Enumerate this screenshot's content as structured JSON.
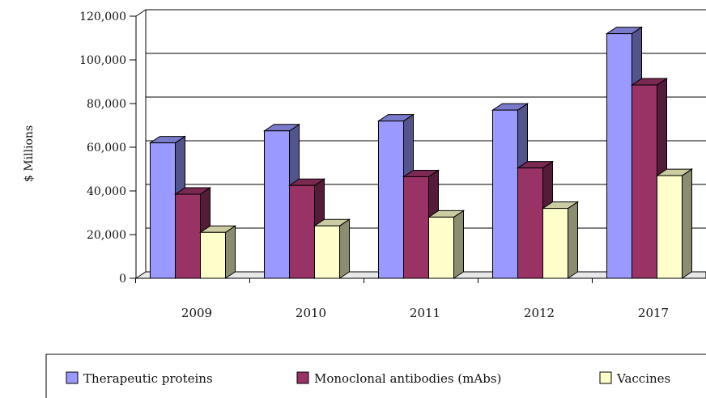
{
  "chart_data": {
    "type": "bar",
    "title": "",
    "xlabel": "",
    "ylabel": "$ Millions",
    "ylim": [
      0,
      120000
    ],
    "yticks": [
      0,
      20000,
      40000,
      60000,
      80000,
      100000,
      120000
    ],
    "ytick_labels": [
      "0",
      "20,000",
      "40,000",
      "60,000",
      "80,000",
      "100,000",
      "120,000"
    ],
    "categories": [
      "2009",
      "2010",
      "2011",
      "2012",
      "2017"
    ],
    "series": [
      {
        "name": "Therapeutic proteins",
        "color": "#9999ff",
        "values": [
          62000,
          67500,
          72000,
          77000,
          112000
        ]
      },
      {
        "name": "Monoclonal antibodies (mAbs)",
        "color": "#993366",
        "values": [
          38500,
          42500,
          46500,
          50500,
          88500
        ]
      },
      {
        "name": "Vaccines",
        "color": "#ffffcc",
        "values": [
          21000,
          24000,
          28000,
          32000,
          47000
        ]
      }
    ],
    "grid": true,
    "legend_position": "bottom",
    "style": "3d-clustered-bar"
  }
}
